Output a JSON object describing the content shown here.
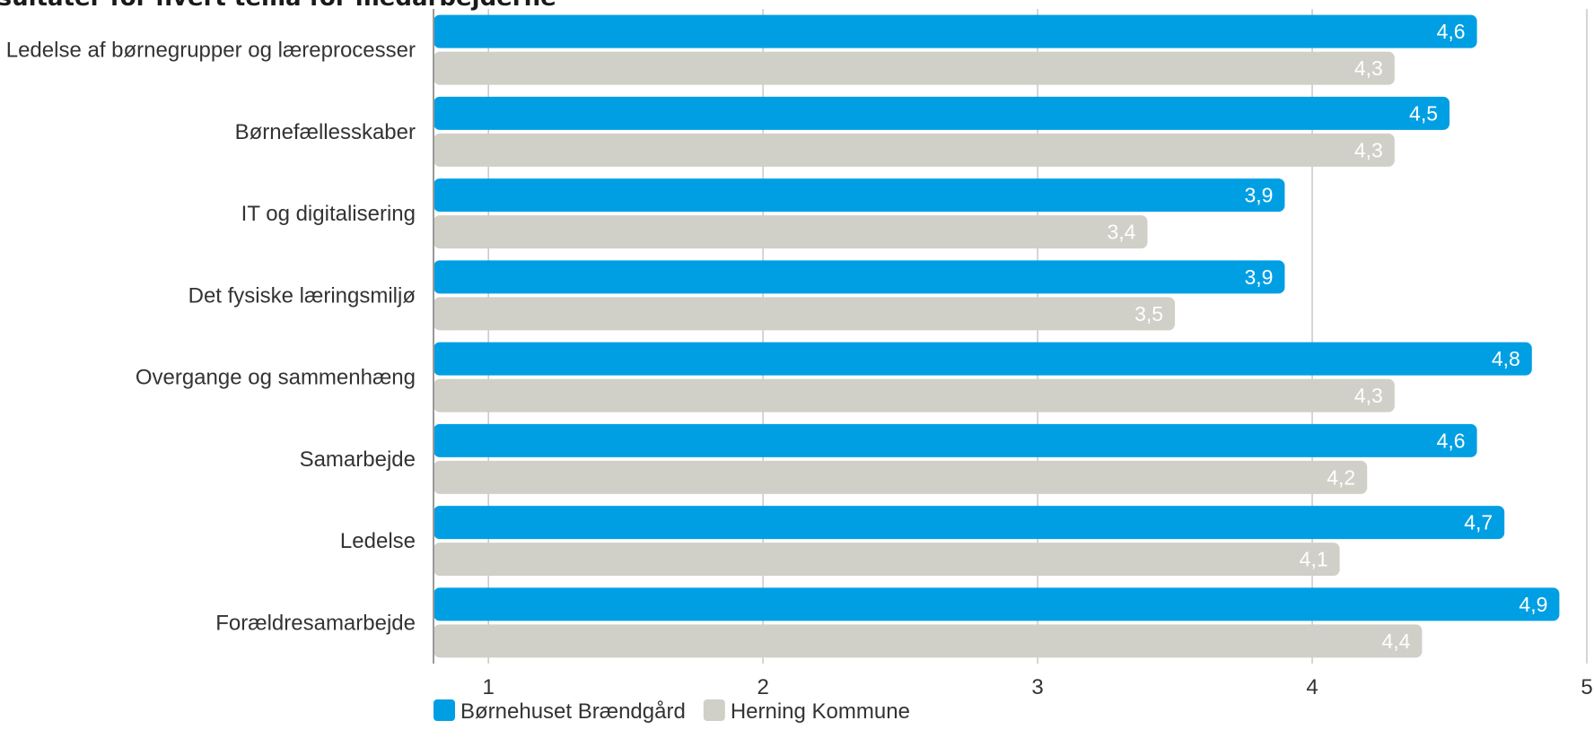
{
  "chart_data": {
    "type": "bar",
    "orientation": "horizontal",
    "title": "Resultater for hvert tema for medarbejderne",
    "categories": [
      "Ledelse af børnegrupper og læreprocesser",
      "Børnefællesskaber",
      "IT og digitalisering",
      "Det fysiske læringsmiljø",
      "Overgange og sammenhæng",
      "Samarbejde",
      "Ledelse",
      "Forældresamarbejde"
    ],
    "series": [
      {
        "name": "Børnehuset Brændgård",
        "color": "#009fe3",
        "values": [
          4.6,
          4.5,
          3.9,
          3.9,
          4.8,
          4.6,
          4.7,
          4.9
        ],
        "labels": [
          "4,6",
          "4,5",
          "3,9",
          "3,9",
          "4,8",
          "4,6",
          "4,7",
          "4,9"
        ]
      },
      {
        "name": "Herning Kommune",
        "color": "#d0d0c8",
        "values": [
          4.3,
          4.3,
          3.4,
          3.5,
          4.3,
          4.2,
          4.1,
          4.4
        ],
        "labels": [
          "4,3",
          "4,3",
          "3,4",
          "3,5",
          "4,3",
          "4,2",
          "4,1",
          "4,4"
        ]
      }
    ],
    "xlim": [
      0.8,
      5
    ],
    "ticks": [
      "1",
      "2",
      "3",
      "4",
      "5"
    ],
    "grid": true,
    "legend_position": "bottom-left"
  }
}
